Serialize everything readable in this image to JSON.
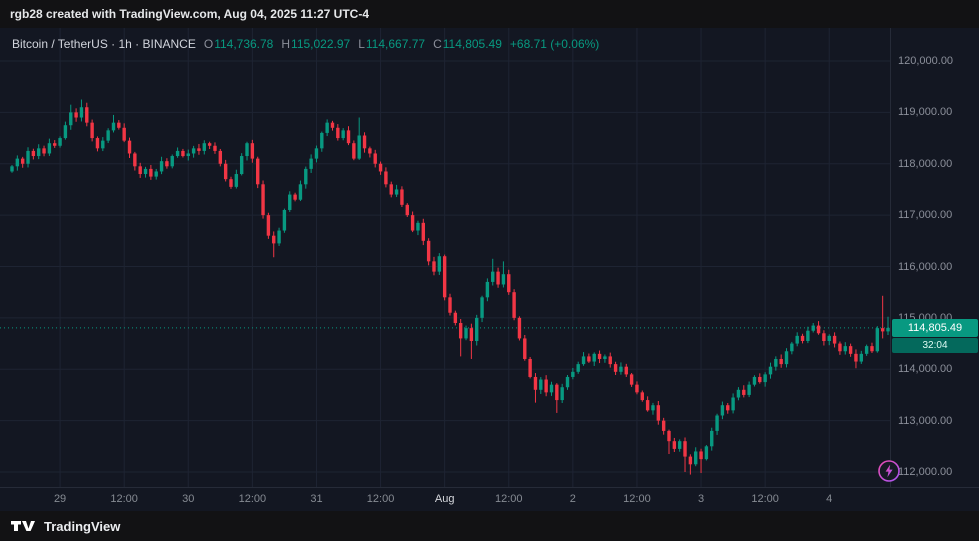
{
  "attribution": {
    "text": "rgb28 created with TradingView.com, Aug 04, 2025 11:27 UTC-4"
  },
  "legend": {
    "title": "Bitcoin / TetherUS · 1h · BINANCE",
    "ohlc": [
      {
        "label": "O",
        "value": "114,736.78"
      },
      {
        "label": "H",
        "value": "115,022.97"
      },
      {
        "label": "L",
        "value": "114,667.77"
      },
      {
        "label": "C",
        "value": "114,805.49"
      }
    ],
    "change": "+68.71 (+0.06%)"
  },
  "price_scale": {
    "label": "114,805.49",
    "countdown": "32:04"
  },
  "footer": {
    "brand": "TradingView"
  },
  "icons": {
    "flash": "lightning-bolt"
  },
  "chart_data": {
    "type": "candlestick",
    "title": "Bitcoin / TetherUS · 1h · BINANCE",
    "last_price": 114805.49,
    "first_open": 117850,
    "colors": {
      "up": "#089981",
      "down": "#f23645",
      "grid": "#1e2433",
      "last_price_line": "#089981"
    },
    "y_axis": {
      "min": 112000,
      "max": 120000,
      "ticks": [
        {
          "value": 120000,
          "label": "120,000.00"
        },
        {
          "value": 119000,
          "label": "119,000.00"
        },
        {
          "value": 118000,
          "label": "118,000.00"
        },
        {
          "value": 117000,
          "label": "117,000.00"
        },
        {
          "value": 116000,
          "label": "116,000.00"
        },
        {
          "value": 115000,
          "label": "115,000.00"
        },
        {
          "value": 114000,
          "label": "114,000.00"
        },
        {
          "value": 113000,
          "label": "113,000.00"
        },
        {
          "value": 112000,
          "label": "112,000.00"
        }
      ]
    },
    "x_axis": {
      "labels": [
        {
          "text": "29",
          "i": 9,
          "major": false
        },
        {
          "text": "12:00",
          "i": 21,
          "major": false
        },
        {
          "text": "30",
          "i": 33,
          "major": false
        },
        {
          "text": "12:00",
          "i": 45,
          "major": false
        },
        {
          "text": "31",
          "i": 57,
          "major": false
        },
        {
          "text": "12:00",
          "i": 69,
          "major": false
        },
        {
          "text": "Aug",
          "i": 81,
          "major": true
        },
        {
          "text": "12:00",
          "i": 93,
          "major": false
        },
        {
          "text": "2",
          "i": 105,
          "major": false
        },
        {
          "text": "12:00",
          "i": 117,
          "major": false
        },
        {
          "text": "3",
          "i": 129,
          "major": false
        },
        {
          "text": "12:00",
          "i": 141,
          "major": false
        },
        {
          "text": "4",
          "i": 153,
          "major": false
        }
      ]
    },
    "closes": [
      117950,
      118100,
      118000,
      118250,
      118150,
      118300,
      118200,
      118400,
      118350,
      118500,
      118750,
      119000,
      118900,
      119100,
      118800,
      118500,
      118300,
      118450,
      118650,
      118800,
      118700,
      118450,
      118200,
      117950,
      117800,
      117900,
      117750,
      117850,
      118050,
      117950,
      118150,
      118250,
      118150,
      118200,
      118300,
      118250,
      118400,
      118350,
      118250,
      118000,
      117700,
      117550,
      117800,
      118150,
      118400,
      118100,
      117600,
      117000,
      116600,
      116450,
      116700,
      117100,
      117400,
      117300,
      117600,
      117900,
      118100,
      118300,
      118600,
      118800,
      118700,
      118500,
      118650,
      118400,
      118100,
      118550,
      118300,
      118200,
      118000,
      117850,
      117600,
      117400,
      117500,
      117200,
      117000,
      116700,
      116850,
      116500,
      116100,
      115900,
      116200,
      115400,
      115100,
      114900,
      114600,
      114800,
      114550,
      115000,
      115400,
      115700,
      115900,
      115650,
      115850,
      115500,
      115000,
      114600,
      114200,
      113850,
      113600,
      113800,
      113550,
      113700,
      113400,
      113650,
      113850,
      113950,
      114100,
      114250,
      114150,
      114300,
      114200,
      114250,
      114100,
      113950,
      114050,
      113900,
      113700,
      113550,
      113400,
      113200,
      113300,
      113000,
      112800,
      112600,
      112450,
      112600,
      112300,
      112150,
      112400,
      112250,
      112500,
      112800,
      113100,
      113300,
      113200,
      113450,
      113600,
      113500,
      113700,
      113850,
      113750,
      113900,
      114050,
      114200,
      114100,
      114350,
      114500,
      114650,
      114550,
      114750,
      114850,
      114700,
      114550,
      114650,
      114500,
      114350,
      114450,
      114300,
      114150,
      114300,
      114450,
      114350,
      114800,
      114736.78,
      114805.49
    ],
    "wick_overrides": {
      "high": {
        "11": 119150,
        "13": 119250,
        "19": 118950,
        "65": 118900,
        "90": 116150,
        "92": 116100,
        "163": 115430,
        "164": 115022.97
      },
      "low": {
        "49": 116180,
        "84": 114250,
        "86": 114200,
        "98": 113350,
        "102": 113150,
        "123": 112350,
        "126": 112000,
        "127": 111950,
        "129": 111980,
        "158": 114020,
        "163": 114600,
        "164": 114667.77
      }
    }
  }
}
